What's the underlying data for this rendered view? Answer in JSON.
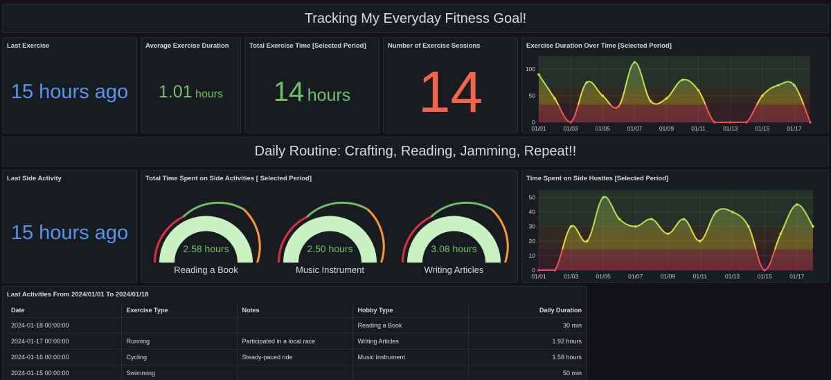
{
  "header": {
    "title": "Tracking My Everyday Fitness Goal!"
  },
  "last_exercise": {
    "title": "Last Exercise",
    "value": "15 hours ago"
  },
  "avg_duration": {
    "title": "Average Exercise Duration",
    "value": "1.01",
    "unit": "hours"
  },
  "total_time": {
    "title": "Total Exercise Time [Selected Period]",
    "value": "14",
    "unit": "hours"
  },
  "sessions": {
    "title": "Number of Exercise Sessions",
    "value": "14"
  },
  "section2": {
    "title": "Daily Routine: Crafting, Reading, Jamming, Repeat!!"
  },
  "last_side": {
    "title": "Last Side Activity",
    "value": "15 hours ago"
  },
  "side_total": {
    "title": "Total Time Spent on Side Activities [ Selected Period]",
    "gauges": [
      {
        "value": "2.58 hours",
        "label": "Reading a Book"
      },
      {
        "value": "2.50 hours",
        "label": "Music Instrument"
      },
      {
        "value": "3.08 hours",
        "label": "Writing Articles"
      }
    ]
  },
  "table": {
    "title": "Last Activities From 2024/01/01 To 2024/01/18",
    "columns": [
      "Date",
      "Exercise Type",
      "Notes",
      "Hobby Type",
      "Daily Duration"
    ],
    "rows": [
      [
        "2024-01-18 00:00:00",
        "",
        "",
        "Reading a Book",
        "30 min"
      ],
      [
        "2024-01-17 00:00:00",
        "Running",
        "Participated in a local race",
        "Writing Articles",
        "1.92 hours"
      ],
      [
        "2024-01-16 00:00:00",
        "Cycling",
        "Steady-paced ride",
        "Music Instrument",
        "1.58 hours"
      ],
      [
        "2024-01-15 00:00:00",
        "Swimming",
        "",
        "",
        "50 min"
      ]
    ]
  },
  "colors": {
    "blue": "#5794f2",
    "green": "#73bf69",
    "red": "#f2654a",
    "gauge_fill": "#c8f2c2"
  },
  "chart_data": [
    {
      "type": "line",
      "title": "Exercise Duration Over Time [Selected Period]",
      "x": [
        "01/01",
        "01/02",
        "01/03",
        "01/04",
        "01/05",
        "01/06",
        "01/07",
        "01/08",
        "01/09",
        "01/10",
        "01/11",
        "01/12",
        "01/13",
        "01/14",
        "01/15",
        "01/16",
        "01/17",
        "01/18"
      ],
      "values": [
        90,
        45,
        0,
        75,
        50,
        30,
        113,
        40,
        45,
        80,
        60,
        0,
        0,
        0,
        50,
        70,
        70,
        0
      ],
      "x_ticks": [
        "01/01",
        "01/03",
        "01/05",
        "01/07",
        "01/09",
        "01/11",
        "01/13",
        "01/15",
        "01/17"
      ],
      "y_ticks": [
        0,
        50,
        100
      ],
      "ylim": [
        0,
        125
      ]
    },
    {
      "type": "line",
      "title": "Time Spent on Side Hustles [Selected Period]",
      "x": [
        "01/01",
        "01/02",
        "01/03",
        "01/04",
        "01/05",
        "01/06",
        "01/07",
        "01/08",
        "01/09",
        "01/10",
        "01/11",
        "01/12",
        "01/13",
        "01/14",
        "01/15",
        "01/16",
        "01/17",
        "01/18"
      ],
      "values": [
        0,
        0,
        30,
        20,
        50,
        35,
        30,
        35,
        25,
        35,
        20,
        40,
        40,
        30,
        0,
        25,
        45,
        30
      ],
      "x_ticks": [
        "01/01",
        "01/03",
        "01/05",
        "01/07",
        "01/09",
        "01/11",
        "01/13",
        "01/15",
        "01/17"
      ],
      "y_ticks": [
        0,
        10,
        20,
        30,
        40,
        50
      ],
      "ylim": [
        0,
        55
      ]
    }
  ]
}
